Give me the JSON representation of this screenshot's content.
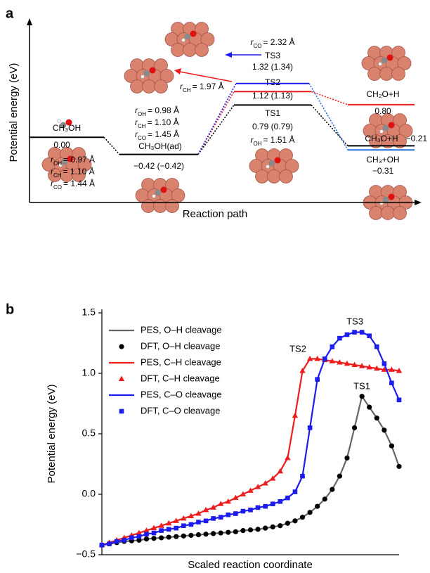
{
  "chart_data": [
    {
      "panel": "a",
      "type": "energy-diagram",
      "ylabel": "Potential energy (eV)",
      "xlabel": "Reaction path",
      "ylim": [
        -1.6,
        2.85
      ],
      "states": [
        {
          "name": "CH₃OH",
          "value": 0,
          "value_label": "0.00",
          "color": "#000000",
          "notes": [
            {
              "symbol": "r",
              "sub": "OH",
              "text": "= 0.97 Å"
            },
            {
              "symbol": "r",
              "sub": "CH",
              "text": "= 1.10 Å"
            },
            {
              "symbol": "r",
              "sub": "CO",
              "text": "= 1.44 Å"
            }
          ]
        },
        {
          "name": "CH₃OH(ad)",
          "value": -0.42,
          "value_label": "−0.42 (−0.42)",
          "color": "#000000",
          "notes": [
            {
              "symbol": "r",
              "sub": "OH",
              "text": "= 0.98 Å"
            },
            {
              "symbol": "r",
              "sub": "CH",
              "text": "= 1.10 Å"
            },
            {
              "symbol": "r",
              "sub": "CO",
              "text": "= 1.45 Å"
            }
          ]
        },
        {
          "name": "TS1",
          "value": 0.79,
          "value_label": "0.79 (0.79)",
          "color": "#000000",
          "notes": [
            {
              "symbol": "r",
              "sub": "OH",
              "text": "= 1.51 Å"
            }
          ]
        },
        {
          "name": "TS2",
          "value": 1.12,
          "value_label": "1.12 (1.13)",
          "color": "#ee1c1c",
          "notes": [
            {
              "symbol": "r",
              "sub": "CH",
              "text": "= 1.97 Å"
            }
          ]
        },
        {
          "name": "TS3",
          "value": 1.32,
          "value_label": "1.32 (1.34)",
          "color": "#1c1cee",
          "notes": [
            {
              "symbol": "r",
              "sub": "CO",
              "text": "= 2.32 Å"
            }
          ]
        },
        {
          "name": "CH₂O+H",
          "value": 0.8,
          "value_label": "0.80",
          "color": "#ee1c1c",
          "notes": []
        },
        {
          "name": "CH₃O+H",
          "value": -0.21,
          "value_label": "−0.21",
          "color": "#000000",
          "notes": []
        },
        {
          "name": "CH₃+OH",
          "value": -0.31,
          "value_label": "−0.31",
          "color": "#1c6ee0",
          "notes": []
        }
      ]
    },
    {
      "panel": "b",
      "type": "line",
      "xlabel": "Scaled reaction coordinate",
      "ylabel": "Potential energy (eV)",
      "xlim": [
        0,
        1
      ],
      "ylim": [
        -0.5,
        1.5
      ],
      "yticks": [
        {
          "value": -0.5,
          "label": "−0.5"
        },
        {
          "value": 0,
          "label": "0.0"
        },
        0.5,
        {
          "value": 1,
          "label": "1.0"
        },
        1.5
      ],
      "legend": "upper left",
      "x": [
        0,
        0.025,
        0.05,
        0.075,
        0.1,
        0.125,
        0.15,
        0.175,
        0.2,
        0.225,
        0.25,
        0.275,
        0.3,
        0.325,
        0.35,
        0.375,
        0.4,
        0.425,
        0.45,
        0.475,
        0.5,
        0.525,
        0.55,
        0.575,
        0.6,
        0.625,
        0.65,
        0.675,
        0.7,
        0.725,
        0.75,
        0.775,
        0.8,
        0.825,
        0.85,
        0.875,
        0.9,
        0.925,
        0.95,
        0.975,
        1
      ],
      "series": [
        {
          "name": "PES, O–H cleavage",
          "color": "#666666",
          "style": "line",
          "values": [
            -0.42,
            -0.41,
            -0.4,
            -0.39,
            -0.385,
            -0.38,
            -0.37,
            -0.365,
            -0.36,
            -0.355,
            -0.35,
            -0.345,
            -0.34,
            -0.335,
            -0.33,
            -0.325,
            -0.32,
            -0.315,
            -0.31,
            -0.3,
            -0.295,
            -0.29,
            -0.28,
            -0.27,
            -0.26,
            -0.24,
            -0.22,
            -0.19,
            -0.15,
            -0.1,
            -0.04,
            0.04,
            0.15,
            0.3,
            0.55,
            0.81,
            0.72,
            0.63,
            0.53,
            0.4,
            0.23
          ]
        },
        {
          "name": "DFT, O–H cleavage",
          "color": "#000000",
          "style": "markers",
          "marker": "circle",
          "values": [
            -0.42,
            -0.41,
            -0.4,
            -0.39,
            -0.385,
            -0.38,
            -0.37,
            -0.365,
            -0.36,
            -0.355,
            -0.35,
            -0.345,
            -0.34,
            -0.335,
            -0.33,
            -0.325,
            -0.32,
            -0.315,
            -0.31,
            -0.3,
            -0.295,
            -0.29,
            -0.28,
            -0.27,
            -0.26,
            -0.24,
            -0.22,
            -0.19,
            -0.15,
            -0.1,
            -0.04,
            0.04,
            0.15,
            0.3,
            0.55,
            0.81,
            0.72,
            0.63,
            0.53,
            0.4,
            0.23
          ]
        },
        {
          "name": "PES, C–H cleavage",
          "color": "#ee1c1c",
          "style": "line",
          "values": [
            -0.42,
            -0.4,
            -0.38,
            -0.36,
            -0.34,
            -0.32,
            -0.3,
            -0.28,
            -0.26,
            -0.24,
            -0.22,
            -0.2,
            -0.18,
            -0.16,
            -0.13,
            -0.11,
            -0.08,
            -0.06,
            -0.03,
            0,
            0.03,
            0.06,
            0.09,
            0.13,
            0.19,
            0.3,
            0.65,
            1.02,
            1.12,
            1.12,
            1.11,
            1.1,
            1.09,
            1.08,
            1.07,
            1.06,
            1.05,
            1.04,
            1.03,
            1.03,
            1.02
          ]
        },
        {
          "name": "DFT, C–H cleavage",
          "color": "#ee1c1c",
          "style": "markers",
          "marker": "triangle",
          "values": [
            -0.42,
            -0.4,
            -0.38,
            -0.36,
            -0.34,
            -0.32,
            -0.3,
            -0.28,
            -0.26,
            -0.24,
            -0.22,
            -0.2,
            -0.18,
            -0.16,
            -0.13,
            -0.11,
            -0.08,
            -0.06,
            -0.03,
            0,
            0.03,
            0.06,
            0.09,
            0.13,
            0.19,
            0.3,
            0.65,
            1.02,
            1.12,
            1.12,
            1.11,
            1.1,
            1.09,
            1.08,
            1.07,
            1.06,
            1.05,
            1.04,
            1.03,
            1.03,
            1.02
          ]
        },
        {
          "name": "PES, C–O cleavage",
          "color": "#1c1cee",
          "style": "line",
          "values": [
            -0.42,
            -0.41,
            -0.39,
            -0.38,
            -0.36,
            -0.35,
            -0.33,
            -0.32,
            -0.3,
            -0.29,
            -0.28,
            -0.26,
            -0.25,
            -0.23,
            -0.22,
            -0.2,
            -0.19,
            -0.17,
            -0.16,
            -0.14,
            -0.13,
            -0.11,
            -0.1,
            -0.08,
            -0.06,
            -0.03,
            0.02,
            0.15,
            0.55,
            0.95,
            1.12,
            1.22,
            1.29,
            1.32,
            1.34,
            1.34,
            1.31,
            1.22,
            1.08,
            0.92,
            0.78
          ]
        },
        {
          "name": "DFT, C–O cleavage",
          "color": "#1c1cee",
          "style": "markers",
          "marker": "square",
          "values": [
            -0.42,
            -0.41,
            -0.39,
            -0.38,
            -0.36,
            -0.35,
            -0.33,
            -0.32,
            -0.3,
            -0.29,
            -0.28,
            -0.26,
            -0.25,
            -0.23,
            -0.22,
            -0.2,
            -0.19,
            -0.17,
            -0.16,
            -0.14,
            -0.13,
            -0.11,
            -0.1,
            -0.08,
            -0.06,
            -0.03,
            0.02,
            0.15,
            0.55,
            0.95,
            1.12,
            1.22,
            1.29,
            1.32,
            1.34,
            1.34,
            1.31,
            1.22,
            1.08,
            0.92,
            0.78
          ]
        }
      ],
      "annotations": [
        {
          "text": "TS1",
          "color": "#000000"
        },
        {
          "text": "TS2",
          "color": "#ee1c1c"
        },
        {
          "text": "TS3",
          "color": "#1c1cee"
        }
      ]
    }
  ]
}
